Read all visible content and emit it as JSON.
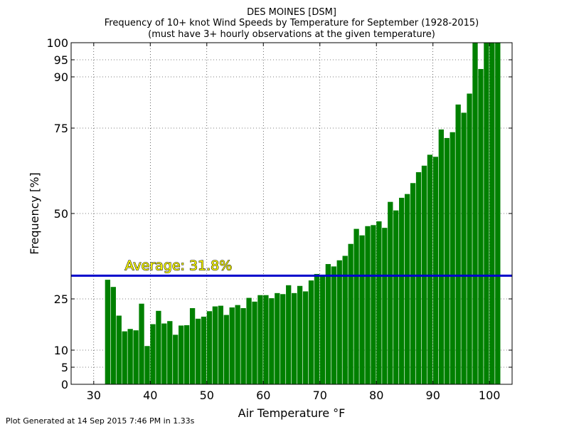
{
  "chart_data": {
    "type": "bar",
    "title": "DES MOINES [DSM]",
    "subtitle": "Frequency of 10+ knot Wind Speeds by Temperature for September (1928-2015)",
    "subtitle2": "(must have 3+ hourly observations at the given temperature)",
    "xlabel": "Air Temperature °F",
    "ylabel": "Frequency [%]",
    "xlim": [
      26,
      104
    ],
    "ylim": [
      0,
      100
    ],
    "xticks": [
      30,
      40,
      50,
      60,
      70,
      80,
      90,
      100
    ],
    "yticks": [
      0,
      5,
      10,
      25,
      50,
      75,
      90,
      95,
      100
    ],
    "grid": true,
    "bar_color": "#008000",
    "average": {
      "value": 31.8,
      "label": "Average: 31.8%",
      "color": "#0000cc"
    },
    "x": [
      32,
      33,
      34,
      35,
      36,
      37,
      38,
      39,
      40,
      41,
      42,
      43,
      44,
      45,
      46,
      47,
      48,
      49,
      50,
      51,
      52,
      53,
      54,
      55,
      56,
      57,
      58,
      59,
      60,
      61,
      62,
      63,
      64,
      65,
      66,
      67,
      68,
      69,
      70,
      71,
      72,
      73,
      74,
      75,
      76,
      77,
      78,
      79,
      80,
      81,
      82,
      83,
      84,
      85,
      86,
      87,
      88,
      89,
      90,
      91,
      92,
      93,
      94,
      95,
      96,
      97,
      98,
      99,
      100,
      101
    ],
    "values": [
      30.6,
      28.5,
      20.1,
      15.5,
      16.2,
      15.8,
      23.6,
      11.2,
      17.6,
      21.5,
      17.8,
      18.5,
      14.5,
      17.2,
      17.3,
      22.3,
      19.2,
      19.8,
      21.4,
      22.8,
      23.0,
      20.3,
      22.5,
      23.2,
      22.3,
      25.3,
      24.2,
      26.1,
      26.1,
      25.2,
      26.7,
      26.4,
      29.0,
      26.7,
      28.8,
      27.2,
      30.4,
      32.3,
      31.6,
      35.2,
      34.5,
      36.3,
      37.6,
      41.1,
      45.5,
      43.6,
      46.3,
      46.6,
      47.7,
      45.8,
      53.4,
      50.9,
      54.6,
      55.7,
      58.9,
      62.1,
      64.0,
      67.2,
      66.6,
      74.6,
      72.1,
      73.8,
      81.9,
      79.5,
      85.1,
      100.0,
      92.3,
      100.0,
      100.0,
      100.0
    ]
  },
  "footer": "Plot Generated at 14 Sep 2015 7:46 PM in 1.33s"
}
